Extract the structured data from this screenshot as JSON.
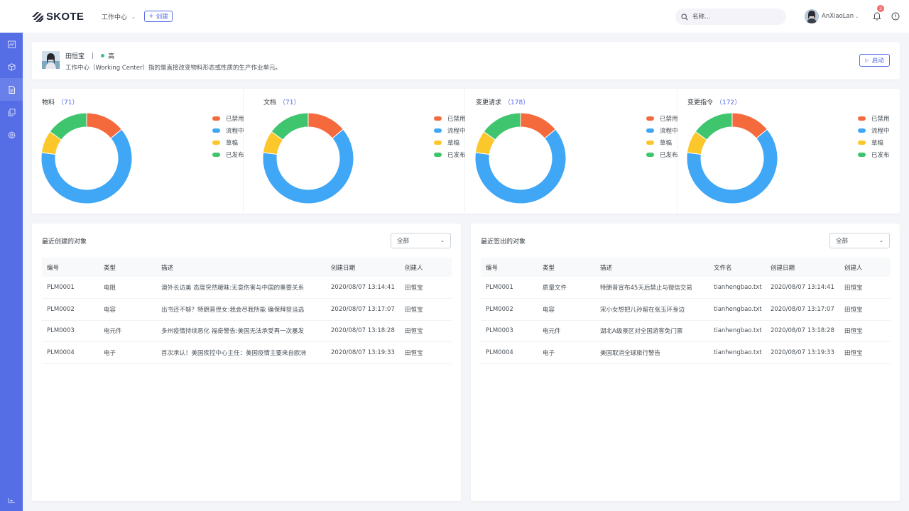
{
  "header": {
    "logo_text": "SKOTE",
    "work_center_menu": "工作中心",
    "create_label": "创建",
    "search_placeholder": "名称...",
    "username": "AnXiaoLan",
    "notification_count": "3"
  },
  "sidebar": {
    "items": [
      {
        "icon": "chart-icon"
      },
      {
        "icon": "cube-icon"
      },
      {
        "icon": "document-icon",
        "active": true
      },
      {
        "icon": "copy-icon"
      },
      {
        "icon": "gear-icon"
      }
    ],
    "bottom_icon": "collapse-icon"
  },
  "info": {
    "name": "田恒宝",
    "separator": "|",
    "level": "高",
    "description": "工作中心（Working Center）指的是直接改变物料形态或性质的生产作业单元。",
    "start_label": "启动"
  },
  "charts": {
    "legend_colors": [
      "#f46a3c",
      "#3fa7f5",
      "#fcc72b",
      "#3fc56d"
    ],
    "panels": [
      {
        "title": "物料",
        "count": "（71）"
      },
      {
        "title": "文档",
        "count": "（71）"
      },
      {
        "title": "变更请求",
        "count": "（178）"
      },
      {
        "title": "变更指令",
        "count": "（172）"
      }
    ]
  },
  "chart_data": [
    {
      "type": "pie",
      "title": "物料",
      "categories": [
        "已禁用",
        "流程中",
        "草稿",
        "已发布"
      ],
      "values": [
        14,
        63,
        8,
        15
      ]
    },
    {
      "type": "pie",
      "title": "文档",
      "categories": [
        "已禁用",
        "流程中",
        "草稿",
        "已发布"
      ],
      "values": [
        14,
        63,
        8,
        15
      ]
    },
    {
      "type": "pie",
      "title": "变更请求",
      "categories": [
        "已禁用",
        "流程中",
        "草稿",
        "已发布"
      ],
      "values": [
        14,
        63,
        8,
        15
      ]
    },
    {
      "type": "pie",
      "title": "变更指令",
      "categories": [
        "已禁用",
        "流程中",
        "草稿",
        "已发布"
      ],
      "values": [
        14,
        63,
        8,
        15
      ]
    }
  ],
  "created_table": {
    "title": "最近创建的对象",
    "filter": "全部",
    "columns": [
      "编号",
      "类型",
      "描述",
      "创建日期",
      "创建人"
    ],
    "rows": [
      [
        "PLM0001",
        "电阻",
        "澳外长访美 态度突然暧昧:无意伤害与中国的重要关系",
        "2020/08/07 13:14:41",
        "田恒宝"
      ],
      [
        "PLM0002",
        "电容",
        "出书还不够？特朗普侄女:我会尽我所能 确保拜登当选",
        "2020/08/07 13:17:07",
        "田恒宝"
      ],
      [
        "PLM0003",
        "电元件",
        "多州疫情持续恶化 福奇警告:美国无法承受再一次暴发",
        "2020/08/07 13:18:28",
        "田恒宝"
      ],
      [
        "PLM0004",
        "电子",
        "首次承认！美国疾控中心主任：美国疫情主要来自欧洲",
        "2020/08/07 13:19:33",
        "田恒宝"
      ]
    ]
  },
  "checkout_table": {
    "title": "最近签出的对象",
    "filter": "全部",
    "columns": [
      "编号",
      "类型",
      "描述",
      "文件名",
      "创建日期",
      "创建人"
    ],
    "rows": [
      [
        "PLM0001",
        "质量文件",
        "特朗普宣布45天后禁止与微信交易",
        "tianhengbao.txt",
        "2020/08/07 13:14:41",
        "田恒宝"
      ],
      [
        "PLM0002",
        "电容",
        "宋小女想把儿孙留在张玉环身边",
        "tianhengbao.txt",
        "2020/08/07 13:17:07",
        "田恒宝"
      ],
      [
        "PLM0003",
        "电元件",
        "湖北A级景区对全国游客免门票",
        "tianhengbao.txt",
        "2020/08/07 13:18:28",
        "田恒宝"
      ],
      [
        "PLM0004",
        "电子",
        "美国取消全球旅行警告",
        "tianhengbao.txt",
        "2020/08/07 13:19:33",
        "田恒宝"
      ]
    ]
  }
}
